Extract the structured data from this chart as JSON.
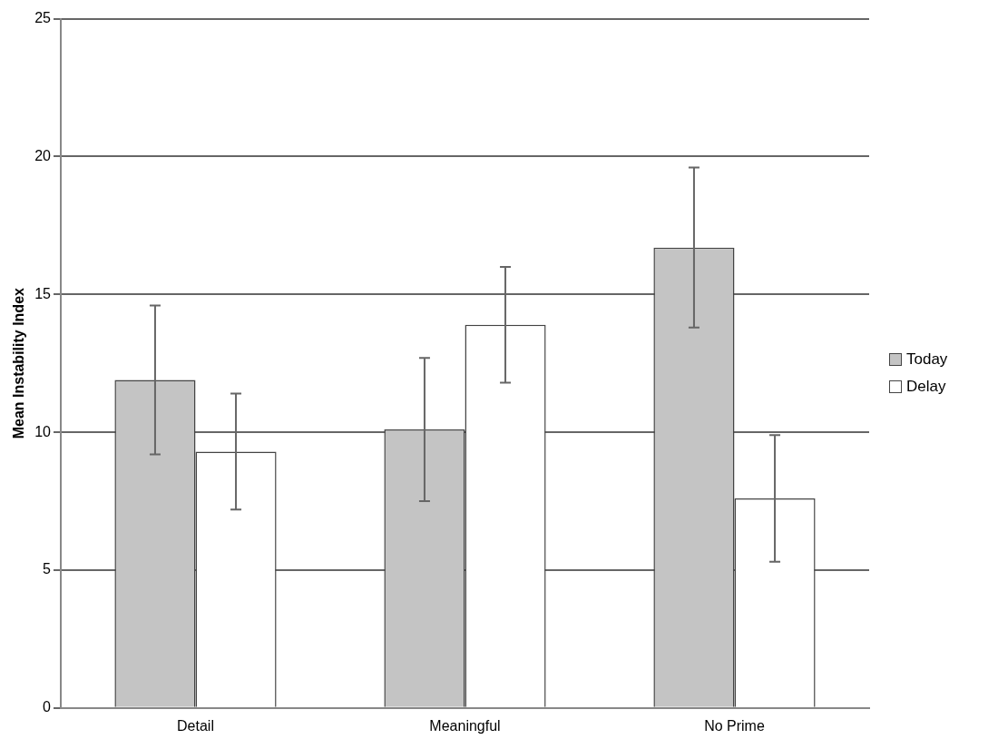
{
  "chart_data": {
    "type": "bar",
    "ylabel": "Mean Instability Index",
    "categories": [
      "Detail",
      "Meaningful",
      "No Prime"
    ],
    "series": [
      {
        "name": "Today",
        "color": "#c4c4c4",
        "values": [
          11.9,
          10.1,
          16.7
        ],
        "errors": [
          2.7,
          2.6,
          2.9
        ]
      },
      {
        "name": "Delay",
        "color": "#ffffff",
        "values": [
          9.3,
          13.9,
          7.6
        ],
        "errors": [
          2.1,
          2.1,
          2.3
        ]
      }
    ],
    "ylim": [
      0,
      25
    ],
    "yticks": [
      0,
      5,
      10,
      15,
      20,
      25
    ],
    "grid": "y",
    "legend": "right"
  }
}
